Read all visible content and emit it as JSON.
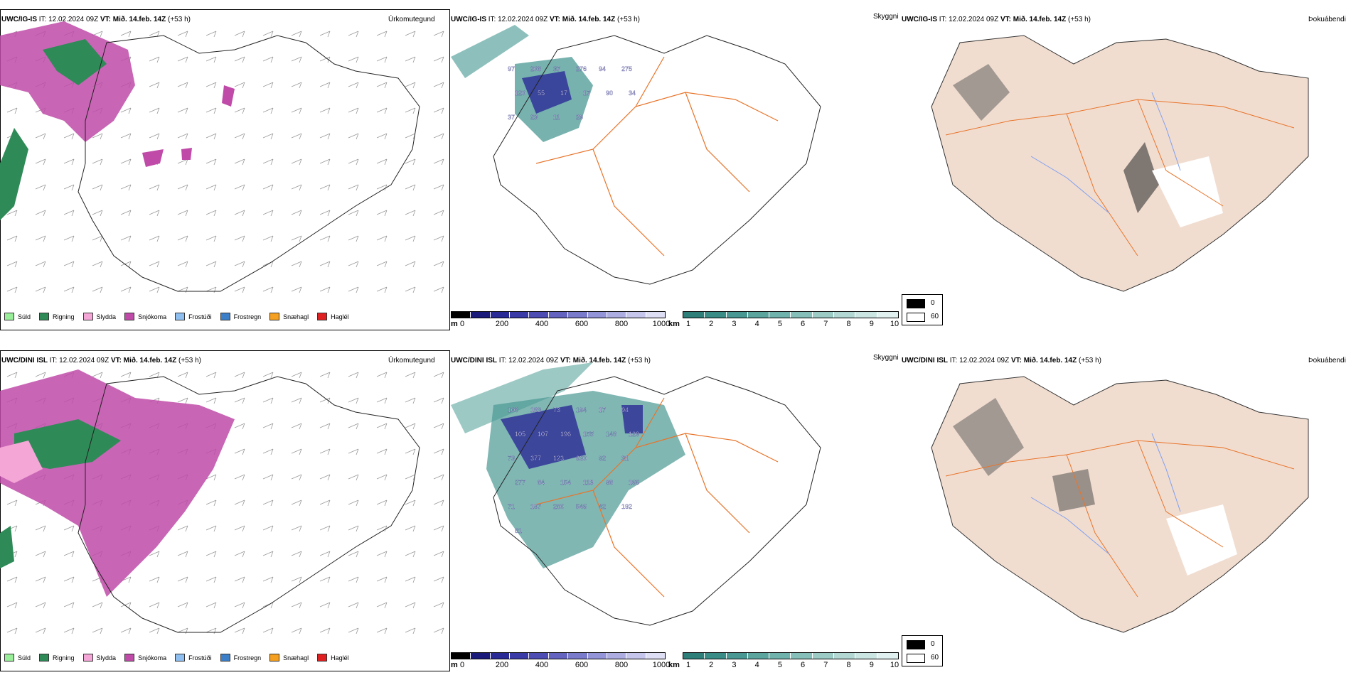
{
  "rows": [
    {
      "model": "UWC/IG-IS",
      "it_label": "IT:",
      "it_value": "12.02.2024 09Z",
      "vt_label": "VT:",
      "vt_value": "Mið. 14.feb. 14Z",
      "lead": "(+53 h)"
    },
    {
      "model": "UWC/DINI ISL",
      "it_label": "IT:",
      "it_value": "12.02.2024 09Z",
      "vt_label": "VT:",
      "vt_value": "Mið. 14.feb. 14Z",
      "lead": "(+53 h)"
    }
  ],
  "panels": {
    "precip_type": "Úrkomutegund",
    "visibility": "Skyggni",
    "fog": "Þokuábendi"
  },
  "precip_legend": [
    {
      "label": "Súld",
      "color": "#99ee99"
    },
    {
      "label": "Rigning",
      "color": "#2e8b57"
    },
    {
      "label": "Slydda",
      "color": "#f4a6d7"
    },
    {
      "label": "Snjókoma",
      "color": "#c04aa8"
    },
    {
      "label": "Frostúði",
      "color": "#8fbff0"
    },
    {
      "label": "Frostregn",
      "color": "#3a7fc8"
    },
    {
      "label": "Snæhagl",
      "color": "#f5a020"
    },
    {
      "label": "Haglél",
      "color": "#e02020"
    }
  ],
  "visibility_legend": {
    "m_unit": "m",
    "m_ticks": [
      "0",
      "200",
      "400",
      "600",
      "800",
      "1000"
    ],
    "m_colors": [
      "#000000",
      "#1a1a7a",
      "#2a2a96",
      "#3b3ba8",
      "#4d4db4",
      "#6464c0",
      "#7b7bcc",
      "#9494d8",
      "#adade2",
      "#c6c6ec",
      "#dedef5"
    ],
    "km_unit": "km",
    "km_ticks": [
      "1",
      "2",
      "3",
      "4",
      "5",
      "6",
      "7",
      "8",
      "9",
      "10"
    ],
    "km_colors": [
      "#2e7f7a",
      "#3a8c86",
      "#4a9893",
      "#5ca59f",
      "#70b2ac",
      "#86bfb9",
      "#9ccbc6",
      "#b3d8d4",
      "#cae5e2",
      "#e0f1ef"
    ]
  },
  "fog_legend": [
    {
      "label": "0",
      "color": "#000000"
    },
    {
      "label": "60",
      "color": "#ffffff"
    }
  ],
  "vis_values": [
    [
      "97",
      "208",
      "37",
      "276",
      "94",
      "275",
      "120",
      "55",
      "17",
      "17",
      "90",
      "34",
      "37",
      "23",
      "11",
      "29"
    ],
    [
      "108",
      "183",
      "73",
      "194",
      "17",
      "94",
      "105",
      "107",
      "196",
      "155",
      "148",
      "129",
      "73",
      "377",
      "123",
      "630",
      "92",
      "31",
      "277",
      "84",
      "154",
      "113",
      "98",
      "166",
      "71",
      "197",
      "280",
      "546",
      "42",
      "192",
      "81"
    ]
  ],
  "colors": {
    "snow": "#c04aa8",
    "rain": "#2e8b57",
    "sleet": "#f4a6d7",
    "vis_teal": "#4a9893",
    "vis_blue": "#2a2a96",
    "fog_land": "#f1ddd0",
    "roads": "#e8742a",
    "rivers": "#7f9ff0"
  }
}
